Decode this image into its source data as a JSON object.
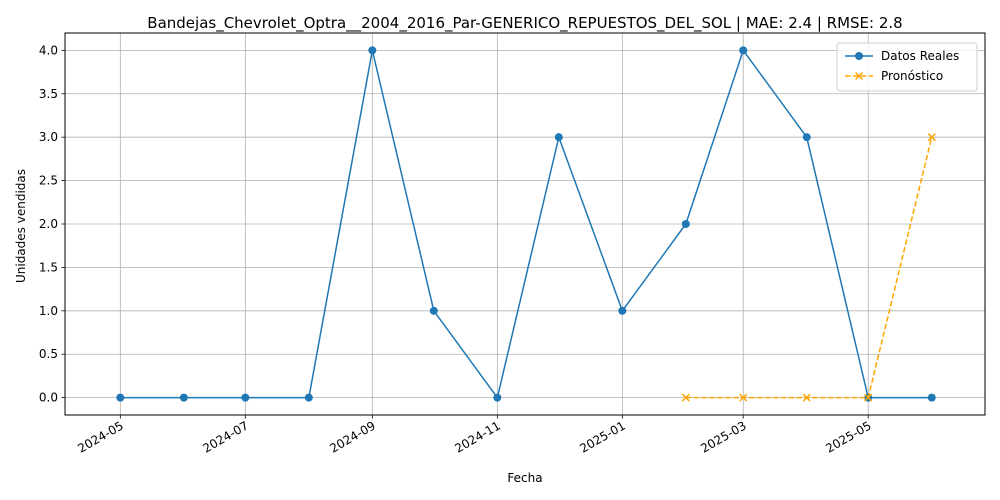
{
  "chart_data": {
    "type": "line",
    "title": "Bandejas_Chevrolet_Optra__2004_2016_Par-GENERICO_REPUESTOS_DEL_SOL | MAE: 2.4 | RMSE: 2.8",
    "xlabel": "Fecha",
    "ylabel": "Unidades vendidas",
    "x_tick_labels": [
      "2024-05",
      "2024-07",
      "2024-09",
      "2024-11",
      "2025-01",
      "2025-03",
      "2025-05"
    ],
    "y_tick_labels": [
      "0.0",
      "0.5",
      "1.0",
      "1.5",
      "2.0",
      "2.5",
      "3.0",
      "3.5",
      "4.0"
    ],
    "ylim": [
      -0.2,
      4.2
    ],
    "xlim": [
      "2024-04-04",
      "2025-06-27"
    ],
    "grid": true,
    "legend_position": "top-right",
    "series": [
      {
        "name": "Datos Reales",
        "color": "#1f77b4",
        "marker": "circle",
        "line_style": "solid",
        "x": [
          "2024-05-01",
          "2024-06-01",
          "2024-07-01",
          "2024-08-01",
          "2024-09-01",
          "2024-10-01",
          "2024-11-01",
          "2024-12-01",
          "2025-01-01",
          "2025-02-01",
          "2025-03-01",
          "2025-04-01",
          "2025-05-01",
          "2025-06-01"
        ],
        "values": [
          0,
          0,
          0,
          0,
          4,
          1,
          0,
          3,
          1,
          2,
          4,
          3,
          0,
          0
        ]
      },
      {
        "name": "Pronóstico",
        "color": "#ffa500",
        "marker": "x",
        "line_style": "dashed",
        "x": [
          "2025-02-01",
          "2025-03-01",
          "2025-04-01",
          "2025-05-01",
          "2025-06-01"
        ],
        "values": [
          0,
          0,
          0,
          0,
          3
        ]
      }
    ]
  }
}
